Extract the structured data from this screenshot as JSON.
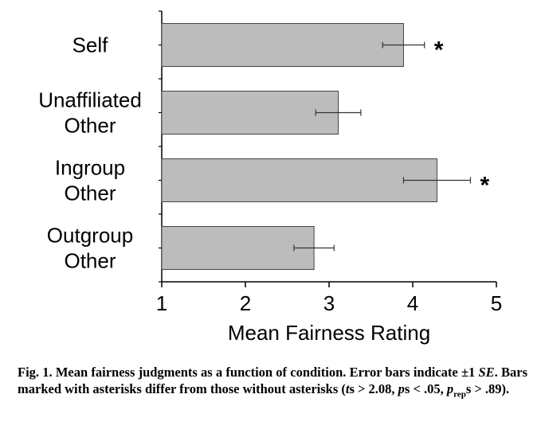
{
  "chart_data": {
    "type": "bar",
    "orientation": "horizontal",
    "categories": [
      [
        "Self"
      ],
      [
        "Unaffiliated",
        "Other"
      ],
      [
        "Ingroup",
        "Other"
      ],
      [
        "Outgroup",
        "Other"
      ]
    ],
    "values": [
      3.89,
      3.11,
      4.29,
      2.82
    ],
    "error": [
      0.25,
      0.27,
      0.4,
      0.24
    ],
    "significant": [
      true,
      false,
      true,
      false
    ],
    "marker": "*",
    "xlabel": "Mean Fairness Rating",
    "xlim": [
      1,
      5
    ],
    "xticks": [
      "1",
      "2",
      "3",
      "4",
      "5"
    ],
    "bar_color": "#bcbcbc",
    "grid": false
  },
  "caption": {
    "label": "Fig. 1.",
    "text": "Mean fairness judgments as a function of condition. Error bars indicate ±1",
    "se": "SE",
    "text2": ". Bars marked with asterisks differ from those without asterisks (",
    "t": "t",
    "t_rest": "s > 2.08, ",
    "p": "p",
    "p_rest": "s < .05, ",
    "prep_p": "p",
    "prep_sub": "rep",
    "prep_rest": "s > .89)."
  }
}
